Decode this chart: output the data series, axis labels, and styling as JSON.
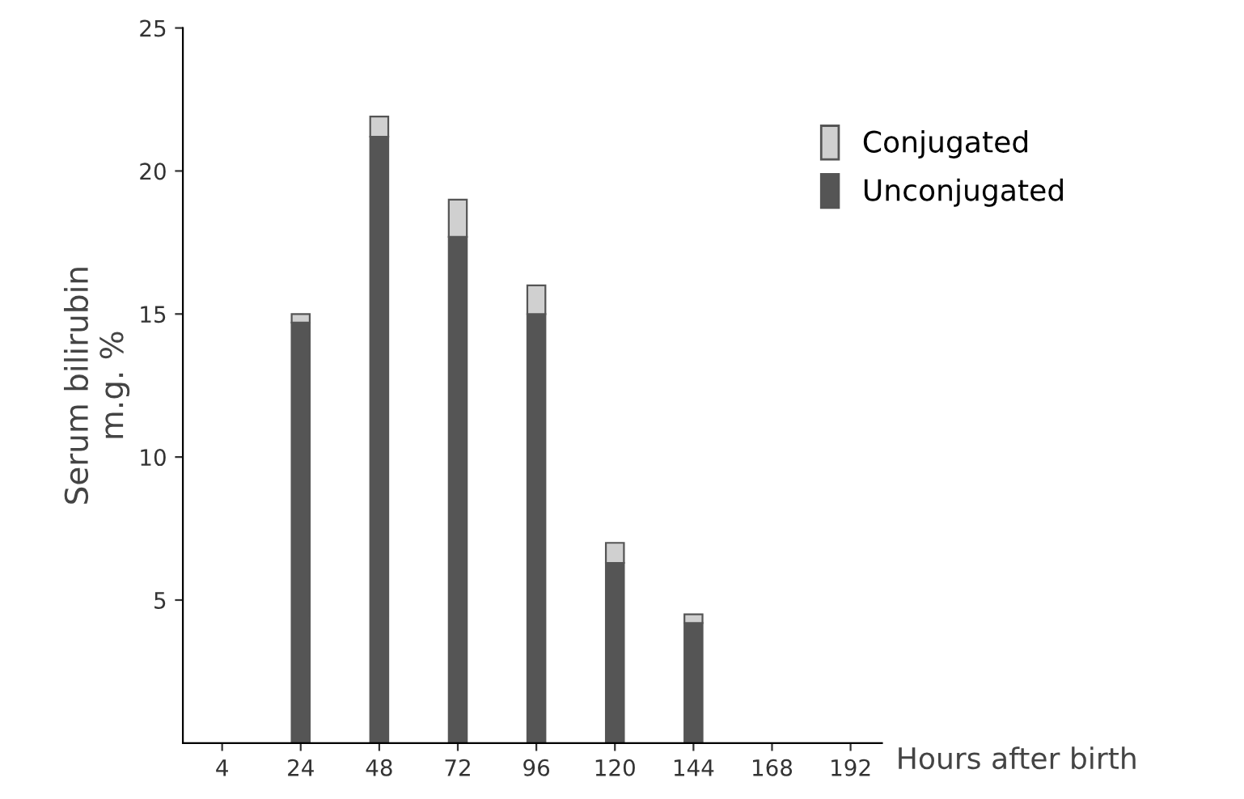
{
  "chart_data": {
    "type": "bar",
    "stacked": true,
    "xlabel": "Hours after birth",
    "ylabel": "Serum bilirubin\nm.g. %",
    "categories": [
      "4",
      "24",
      "48",
      "72",
      "96",
      "120",
      "144",
      "168",
      "192"
    ],
    "series": [
      {
        "name": "Unconjugated",
        "color": "#555555",
        "values": [
          null,
          14.7,
          21.2,
          17.7,
          15.0,
          6.3,
          4.2,
          null,
          null
        ]
      },
      {
        "name": "Conjugated",
        "color": "#d0d0d0",
        "values": [
          null,
          0.3,
          0.7,
          1.3,
          1.0,
          0.7,
          0.3,
          null,
          null
        ]
      }
    ],
    "ylim": [
      0,
      25
    ],
    "yticks": [
      5,
      10,
      15,
      20,
      25
    ],
    "grid": false,
    "legend": "top right"
  }
}
